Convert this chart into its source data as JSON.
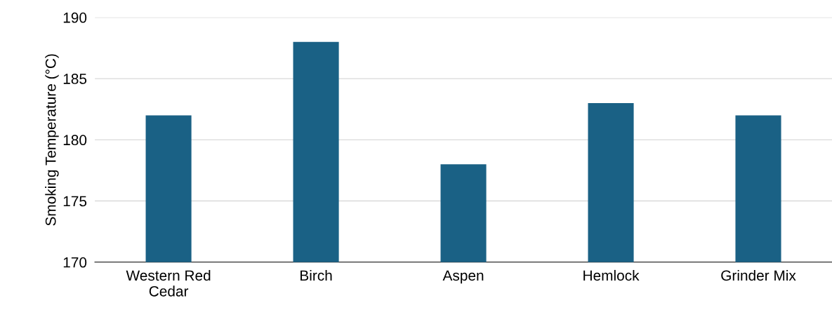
{
  "chart_data": {
    "type": "bar",
    "ylabel": "Smoking Temperature (°C)",
    "categories": [
      "Western Red Cedar",
      "Birch",
      "Aspen",
      "Hemlock",
      "Grinder Mix"
    ],
    "values": [
      182,
      188,
      178,
      183,
      182
    ],
    "color": "#1a6185",
    "ylim": [
      170,
      190
    ],
    "yticks": [
      170,
      175,
      180,
      185,
      190
    ],
    "grid": "y",
    "legend": false
  }
}
